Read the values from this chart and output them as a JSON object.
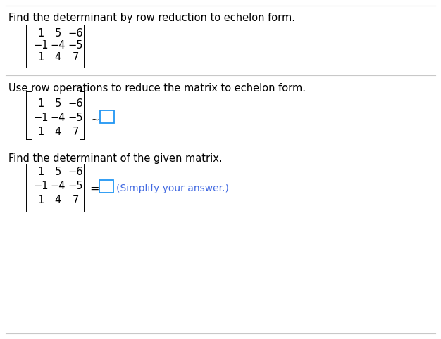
{
  "title_text": "Find the determinant by row reduction to echelon form.",
  "section2_text": "Use row operations to reduce the matrix to echelon form.",
  "section3_text": "Find the determinant of the given matrix.",
  "simplify_text": "(Simplify your answer.)",
  "matrix_rows": [
    [
      "1",
      "5",
      "−6"
    ],
    [
      "−1",
      "−4",
      "−5"
    ],
    [
      "1",
      "4",
      "7"
    ]
  ],
  "bg_color": "#ffffff",
  "text_color": "#000000",
  "blue_text_color": "#4169e1",
  "font_size_main": 10.5,
  "font_size_matrix": 10.5,
  "divider_color": "#c8c8c8"
}
